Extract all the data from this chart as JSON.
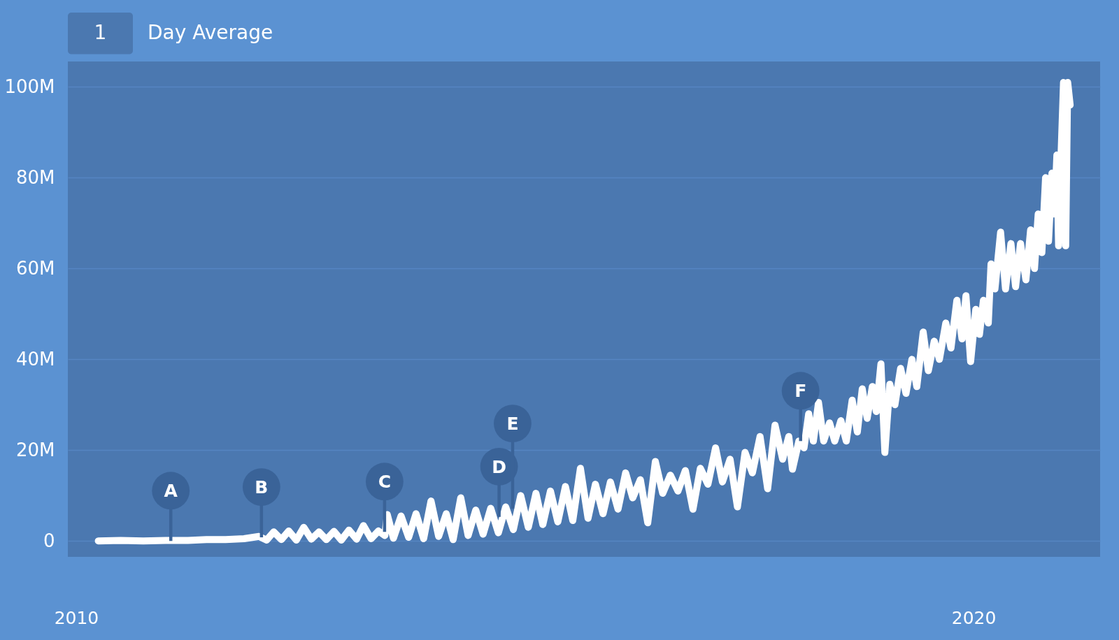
{
  "chart_data": {
    "type": "line",
    "annotations": [
      "1",
      "Day Average",
      {
        "text": "A",
        "x": "2011-01-21",
        "y": 0
      },
      {
        "text": "B",
        "x": "2012-01-25",
        "y": 800000
      },
      {
        "text": "C",
        "x": "2013-06-09",
        "y": 2000000
      },
      {
        "text": "D",
        "x": "2014-09-18",
        "y": 5300000
      },
      {
        "text": "E",
        "x": "2014-11-12",
        "y": 7100000
      },
      {
        "text": "F",
        "x": "2018-01-27",
        "y": 22000000
      }
    ],
    "x": [
      "2010-04-01",
      "2010-07-01",
      "2010-10-01",
      "2011-01-01",
      "2011-04-01",
      "2011-06-15",
      "2011-09-01",
      "2011-11-15",
      "2012-01-15",
      "2012-02-15",
      "2012-03-15",
      "2012-04-15",
      "2012-05-15",
      "2012-06-15",
      "2012-07-15",
      "2012-08-15",
      "2012-09-15",
      "2012-10-15",
      "2012-11-15",
      "2012-12-15",
      "2013-01-15",
      "2013-02-15",
      "2013-03-15",
      "2013-04-15",
      "2013-05-15",
      "2013-06-10",
      "2013-06-20",
      "2013-07-15",
      "2013-08-15",
      "2013-09-15",
      "2013-10-15",
      "2013-11-15",
      "2013-12-15",
      "2014-01-15",
      "2014-02-15",
      "2014-03-15",
      "2014-04-15",
      "2014-05-15",
      "2014-06-15",
      "2014-07-15",
      "2014-08-15",
      "2014-09-15",
      "2014-10-15",
      "2014-11-15",
      "2014-12-15",
      "2015-01-15",
      "2015-02-15",
      "2015-03-15",
      "2015-04-15",
      "2015-05-15",
      "2015-06-15",
      "2015-07-15",
      "2015-08-15",
      "2015-09-15",
      "2015-10-15",
      "2015-11-15",
      "2015-12-15",
      "2016-01-15",
      "2016-02-15",
      "2016-03-15",
      "2016-04-15",
      "2016-05-15",
      "2016-06-15",
      "2016-07-15",
      "2016-08-15",
      "2016-09-15",
      "2016-10-15",
      "2016-11-15",
      "2016-12-15",
      "2017-01-15",
      "2017-02-15",
      "2017-03-15",
      "2017-04-15",
      "2017-05-15",
      "2017-06-15",
      "2017-07-15",
      "2017-08-15",
      "2017-09-15",
      "2017-10-15",
      "2017-11-15",
      "2017-12-10",
      "2017-12-25",
      "2018-01-20",
      "2018-02-10",
      "2018-03-01",
      "2018-03-20",
      "2018-04-10",
      "2018-05-01",
      "2018-05-25",
      "2018-06-15",
      "2018-07-10",
      "2018-08-01",
      "2018-08-25",
      "2018-09-15",
      "2018-10-05",
      "2018-10-25",
      "2018-11-15",
      "2018-12-01",
      "2018-12-20",
      "2019-01-05",
      "2019-01-25",
      "2019-02-15",
      "2019-03-10",
      "2019-04-01",
      "2019-04-25",
      "2019-05-15",
      "2019-06-10",
      "2019-07-01",
      "2019-07-25",
      "2019-08-15",
      "2019-09-10",
      "2019-10-01",
      "2019-10-25",
      "2019-11-15",
      "2019-12-01",
      "2019-12-20",
      "2020-01-10",
      "2020-01-25",
      "2020-02-10",
      "2020-03-01",
      "2020-03-12",
      "2020-03-28",
      "2020-04-20",
      "2020-05-10",
      "2020-06-01",
      "2020-06-20",
      "2020-07-10",
      "2020-08-01",
      "2020-08-20",
      "2020-09-05",
      "2020-09-20",
      "2020-10-05",
      "2020-10-20",
      "2020-11-01",
      "2020-11-15",
      "2020-11-25",
      "2020-12-05",
      "2020-12-12",
      "2020-12-22",
      "2021-01-01",
      "2021-01-10",
      "2021-01-18",
      "2021-01-28"
    ],
    "series": [
      {
        "color": "#ffffff",
        "values": [
          0,
          100000,
          0,
          100000,
          100000,
          300000,
          300000,
          500000,
          1000000,
          200000,
          2000000,
          300000,
          2200000,
          200000,
          3000000,
          400000,
          2000000,
          300000,
          2100000,
          200000,
          2400000,
          400000,
          3400000,
          500000,
          2200000,
          1200000,
          5800000,
          600000,
          5500000,
          800000,
          6000000,
          500000,
          8800000,
          1000000,
          6000000,
          300000,
          9500000,
          1200000,
          6800000,
          1500000,
          7200000,
          1800000,
          7500000,
          2500000,
          10000000,
          3000000,
          10500000,
          3600000,
          11000000,
          4200000,
          12000000,
          4500000,
          16000000,
          5000000,
          12500000,
          6000000,
          13000000,
          7000000,
          15000000,
          9500000,
          13500000,
          4000000,
          17500000,
          10500000,
          14500000,
          11000000,
          15500000,
          7000000,
          16000000,
          12500000,
          20500000,
          13000000,
          18000000,
          7500000,
          19500000,
          15000000,
          23000000,
          11500000,
          25500000,
          18000000,
          23000000,
          15800000,
          22000000,
          20500000,
          28000000,
          22000000,
          30500000,
          22000000,
          26000000,
          22000000,
          26500000,
          22000000,
          31000000,
          24000000,
          33500000,
          27000000,
          34000000,
          28500000,
          39000000,
          19500000,
          34500000,
          30000000,
          38000000,
          32500000,
          40000000,
          34000000,
          46000000,
          37500000,
          44000000,
          40000000,
          48000000,
          42500000,
          53000000,
          44500000,
          54000000,
          39500000,
          51000000,
          45500000,
          53000000,
          48000000,
          61000000,
          55500000,
          68000000,
          55500000,
          65500000,
          56000000,
          65500000,
          57500000,
          68500000,
          60000000,
          72000000,
          63500000,
          80000000,
          66000000,
          81000000,
          72000000,
          85000000,
          65000000,
          85000000,
          101000000,
          65000000,
          101000000,
          96000000
        ]
      }
    ],
    "xlim": [
      "2009-11-28",
      "2021-05-30"
    ],
    "xticks": [
      "2010",
      "2020"
    ],
    "ylim": [
      -3500000,
      105600000
    ],
    "yticks": [
      0,
      {
        "value": 20000000,
        "label": "20M"
      },
      {
        "value": 40000000,
        "label": "40M"
      },
      {
        "value": 60000000,
        "label": "60M"
      },
      {
        "value": 80000000,
        "label": "80M"
      },
      {
        "value": 100000000,
        "label": "100M"
      }
    ],
    "grid": "y"
  }
}
